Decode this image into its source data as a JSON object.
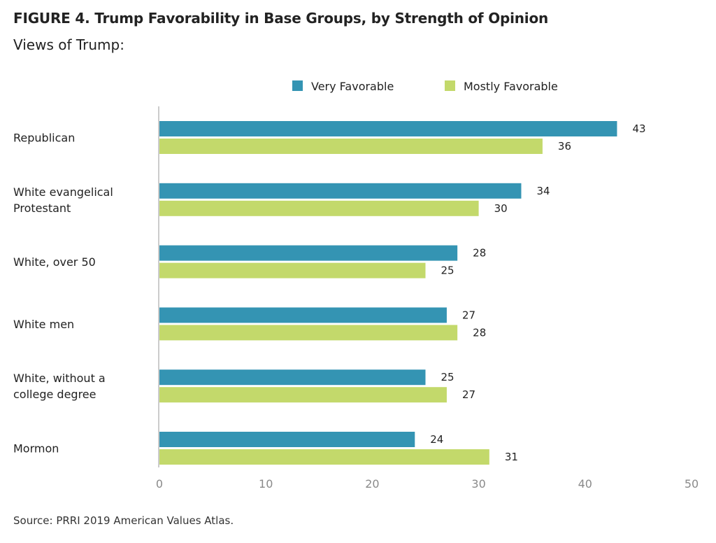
{
  "figure": {
    "title": "FIGURE 4.  Trump Favorability in Base Groups, by Strength of Opinion",
    "subtitle": "Views of Trump:",
    "source": "Source: PRRI 2019 American Values Atlas."
  },
  "chart_data": {
    "type": "bar",
    "orientation": "horizontal",
    "categories": [
      [
        "Republican"
      ],
      [
        "White evangelical",
        "Protestant"
      ],
      [
        "White, over 50"
      ],
      [
        "White men"
      ],
      [
        "White, without a",
        "college degree"
      ],
      [
        "Mormon"
      ]
    ],
    "series": [
      {
        "name": "Very Favorable",
        "color": "#3494b3",
        "values": [
          43,
          34,
          28,
          27,
          25,
          24
        ]
      },
      {
        "name": "Mostly Favorable",
        "color": "#c3d96b",
        "values": [
          36,
          30,
          25,
          28,
          27,
          31
        ]
      }
    ],
    "xlim": [
      0,
      50
    ],
    "xticks": [
      0,
      10,
      20,
      30,
      40,
      50
    ],
    "legend_position": "top-right",
    "grid": false,
    "data_labels": true
  }
}
